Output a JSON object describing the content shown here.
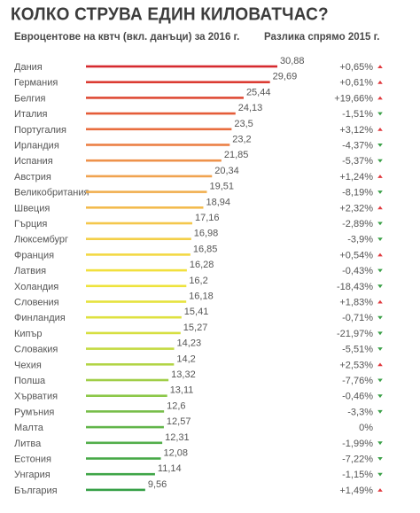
{
  "header": {
    "title": "КОЛКО СТРУВА ЕДИН КИЛОВАТЧАС?",
    "subtitle_left": "Евроцентове на квтч (вкл. данъци) за 2016 г.",
    "subtitle_right": "Разлика спрямо 2015 г."
  },
  "colors": {
    "arrow_up": "#e0393e",
    "arrow_down": "#3aa047",
    "gradient": [
      "#d62a2e",
      "#e6623a",
      "#f0a050",
      "#f4c84c",
      "#f2e43c",
      "#d8e040",
      "#9ccd48",
      "#55b04a",
      "#36a046"
    ]
  },
  "chart_data": {
    "type": "bar",
    "orientation": "horizontal",
    "title": "КОЛКО СТРУВА ЕДИН КИЛОВАТЧАС?",
    "categories": [
      "Дания",
      "Германия",
      "Белгия",
      "Италия",
      "Португалия",
      "Ирландия",
      "Испания",
      "Австрия",
      "Великобритания",
      "Швеция",
      "Гърция",
      "Люксембург",
      "Франция",
      "Латвия",
      "Холандия",
      "Словения",
      "Финландия",
      "Кипър",
      "Словакия",
      "Чехия",
      "Полша",
      "Хърватия",
      "Румъния",
      "Малта",
      "Литва",
      "Естония",
      "Унгария",
      "България"
    ],
    "value_labels": [
      "30,88",
      "29,69",
      "25,44",
      "24,13",
      "23,5",
      "23,2",
      "21,85",
      "20,34",
      "19,51",
      "18,94",
      "17,16",
      "16,98",
      "16,85",
      "16,28",
      "16,2",
      "16,18",
      "15,41",
      "15,27",
      "14,23",
      "14,2",
      "13,32",
      "13,11",
      "12,6",
      "12,57",
      "12,31",
      "12,08",
      "11,14",
      "9,56"
    ],
    "values": [
      30.88,
      29.69,
      25.44,
      24.13,
      23.5,
      23.2,
      21.85,
      20.34,
      19.51,
      18.94,
      17.16,
      16.98,
      16.85,
      16.28,
      16.2,
      16.18,
      15.41,
      15.27,
      14.23,
      14.2,
      13.32,
      13.11,
      12.6,
      12.57,
      12.31,
      12.08,
      11.14,
      9.56
    ],
    "changes": [
      "+0,65%",
      "+0,61%",
      "+19,66%",
      "-1,51%",
      "+3,12%",
      "-4,37%",
      "-5,37%",
      "+1,24%",
      "-8,19%",
      "+2,32%",
      "-2,89%",
      "-3,9%",
      "+0,54%",
      "-0,43%",
      "-18,43%",
      "+1,83%",
      "-0,71%",
      "-21,97%",
      "-5,51%",
      "+2,53%",
      "-7,76%",
      "-0,46%",
      "-3,3%",
      "0%",
      "-1,99%",
      "-7,22%",
      "-1,15%",
      "+1,49%"
    ],
    "change_direction": [
      "up",
      "up",
      "up",
      "down",
      "up",
      "down",
      "down",
      "up",
      "down",
      "up",
      "down",
      "down",
      "up",
      "down",
      "down",
      "up",
      "down",
      "down",
      "down",
      "up",
      "down",
      "down",
      "down",
      "none",
      "down",
      "down",
      "down",
      "up"
    ],
    "xlim": [
      0,
      30.88
    ]
  }
}
